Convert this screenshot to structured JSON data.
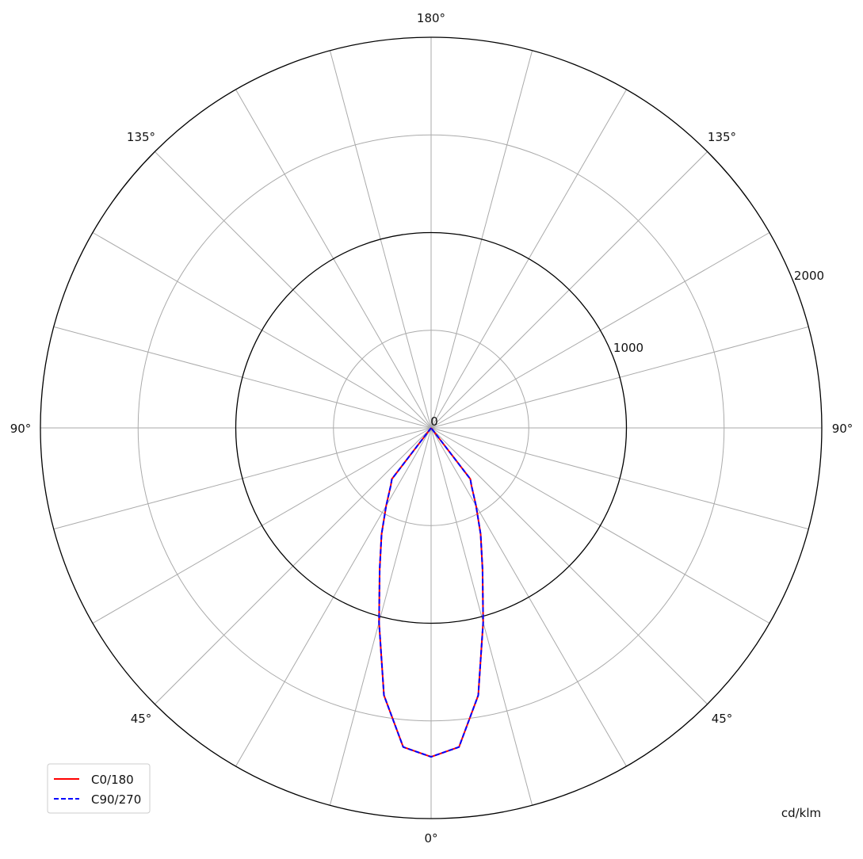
{
  "chart_data": {
    "type": "polar-line",
    "unit_label": "cd/klm",
    "radial_ticks": [
      0,
      1000,
      2000
    ],
    "radial_max": 2000,
    "radial_grid": [
      500,
      1000,
      1500,
      2000
    ],
    "angle_labels": {
      "top": "180°",
      "upper_left": "135°",
      "upper_right": "135°",
      "left": "90°",
      "right": "90°",
      "lower_left": "45°",
      "lower_right": "45°",
      "bottom": "0°"
    },
    "angle_grid_step_deg": 15,
    "grid": true,
    "legend_position": "bottom-left",
    "gamma_deg": [
      0,
      5,
      10,
      15,
      20,
      25,
      30,
      35,
      37.5,
      40,
      45,
      50,
      55,
      60,
      65,
      70,
      75,
      80,
      85,
      90
    ],
    "series": [
      {
        "name": "C0/180",
        "color": "#ff0000",
        "dash": "solid",
        "values": [
          1684,
          1640,
          1390,
          1030,
          770,
          600,
          460,
          360,
          330,
          0,
          0,
          0,
          0,
          0,
          0,
          0,
          0,
          0,
          0,
          0
        ]
      },
      {
        "name": "C90/270",
        "color": "#0000ff",
        "dash": "dashed",
        "values": [
          1684,
          1640,
          1390,
          1030,
          770,
          600,
          460,
          360,
          330,
          0,
          0,
          0,
          0,
          0,
          0,
          0,
          0,
          0,
          0,
          0
        ]
      }
    ]
  }
}
